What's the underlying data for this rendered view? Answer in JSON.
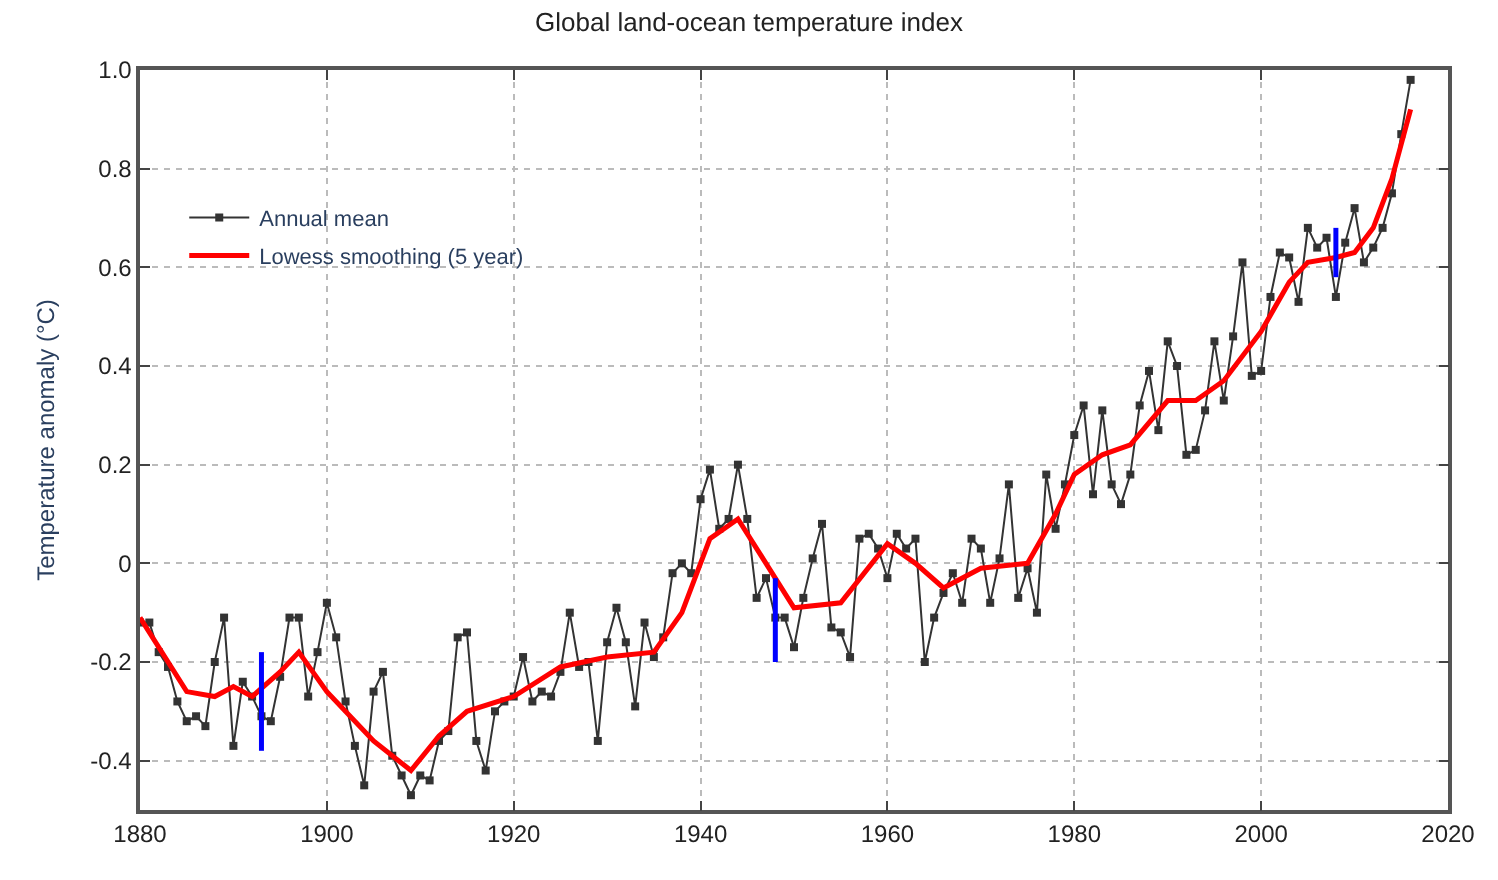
{
  "chart_data": {
    "type": "line",
    "title": "Global land-ocean temperature index",
    "ylabel": "Temperature anomaly (°C)",
    "xlim": [
      1880,
      2020
    ],
    "xticks": [
      1880,
      1900,
      1920,
      1940,
      1960,
      1980,
      2000,
      2020
    ],
    "ylim": [
      -0.5,
      1.0
    ],
    "yticks": [
      -0.4,
      -0.2,
      0,
      0.2,
      0.4,
      0.6,
      0.8,
      {
        "value": 1.0,
        "label": "1.0"
      }
    ],
    "grid": true,
    "legend": "top left",
    "series": [
      {
        "name": "Annual mean",
        "color": "#333333",
        "marker": "square",
        "x": [
          1880,
          1881,
          1882,
          1883,
          1884,
          1885,
          1886,
          1887,
          1888,
          1889,
          1890,
          1891,
          1892,
          1893,
          1894,
          1895,
          1896,
          1897,
          1898,
          1899,
          1900,
          1901,
          1902,
          1903,
          1904,
          1905,
          1906,
          1907,
          1908,
          1909,
          1910,
          1911,
          1912,
          1913,
          1914,
          1915,
          1916,
          1917,
          1918,
          1919,
          1920,
          1921,
          1922,
          1923,
          1924,
          1925,
          1926,
          1927,
          1928,
          1929,
          1930,
          1931,
          1932,
          1933,
          1934,
          1935,
          1936,
          1937,
          1938,
          1939,
          1940,
          1941,
          1942,
          1943,
          1944,
          1945,
          1946,
          1947,
          1948,
          1949,
          1950,
          1951,
          1952,
          1953,
          1954,
          1955,
          1956,
          1957,
          1958,
          1959,
          1960,
          1961,
          1962,
          1963,
          1964,
          1965,
          1966,
          1967,
          1968,
          1969,
          1970,
          1971,
          1972,
          1973,
          1974,
          1975,
          1976,
          1977,
          1978,
          1979,
          1980,
          1981,
          1982,
          1983,
          1984,
          1985,
          1986,
          1987,
          1988,
          1989,
          1990,
          1991,
          1992,
          1993,
          1994,
          1995,
          1996,
          1997,
          1998,
          1999,
          2000,
          2001,
          2002,
          2003,
          2004,
          2005,
          2006,
          2007,
          2008,
          2009,
          2010,
          2011,
          2012,
          2013,
          2014,
          2015,
          2016
        ],
        "values": [
          -0.12,
          -0.12,
          -0.18,
          -0.21,
          -0.28,
          -0.32,
          -0.31,
          -0.33,
          -0.2,
          -0.11,
          -0.37,
          -0.24,
          -0.27,
          -0.31,
          -0.32,
          -0.23,
          -0.11,
          -0.11,
          -0.27,
          -0.18,
          -0.08,
          -0.15,
          -0.28,
          -0.37,
          -0.45,
          -0.26,
          -0.22,
          -0.39,
          -0.43,
          -0.47,
          -0.43,
          -0.44,
          -0.36,
          -0.34,
          -0.15,
          -0.14,
          -0.36,
          -0.42,
          -0.3,
          -0.28,
          -0.27,
          -0.19,
          -0.28,
          -0.26,
          -0.27,
          -0.22,
          -0.1,
          -0.21,
          -0.2,
          -0.36,
          -0.16,
          -0.09,
          -0.16,
          -0.29,
          -0.12,
          -0.19,
          -0.15,
          -0.02,
          0.0,
          -0.02,
          0.13,
          0.19,
          0.07,
          0.09,
          0.2,
          0.09,
          -0.07,
          -0.03,
          -0.11,
          -0.11,
          -0.17,
          -0.07,
          0.01,
          0.08,
          -0.13,
          -0.14,
          -0.19,
          0.05,
          0.06,
          0.03,
          -0.03,
          0.06,
          0.03,
          0.05,
          -0.2,
          -0.11,
          -0.06,
          -0.02,
          -0.08,
          0.05,
          0.03,
          -0.08,
          0.01,
          0.16,
          -0.07,
          -0.01,
          -0.1,
          0.18,
          0.07,
          0.16,
          0.26,
          0.32,
          0.14,
          0.31,
          0.16,
          0.12,
          0.18,
          0.32,
          0.39,
          0.27,
          0.45,
          0.4,
          0.22,
          0.23,
          0.31,
          0.45,
          0.33,
          0.46,
          0.61,
          0.38,
          0.39,
          0.54,
          0.63,
          0.62,
          0.53,
          0.68,
          0.64,
          0.66,
          0.54,
          0.65,
          0.72,
          0.61,
          0.64,
          0.68,
          0.75,
          0.87,
          0.98
        ]
      },
      {
        "name": "Lowess smoothing (5 year)",
        "color": "#ff0000",
        "marker": "none",
        "x": [
          1880,
          1885,
          1888,
          1890,
          1892,
          1895,
          1897,
          1900,
          1905,
          1909,
          1912,
          1915,
          1920,
          1925,
          1930,
          1935,
          1938,
          1941,
          1944,
          1947,
          1950,
          1955,
          1960,
          1963,
          1966,
          1970,
          1975,
          1978,
          1980,
          1983,
          1986,
          1990,
          1993,
          1996,
          2000,
          2003,
          2005,
          2008,
          2010,
          2012,
          2014,
          2016
        ],
        "values": [
          -0.11,
          -0.26,
          -0.27,
          -0.25,
          -0.27,
          -0.22,
          -0.18,
          -0.26,
          -0.36,
          -0.42,
          -0.35,
          -0.3,
          -0.27,
          -0.21,
          -0.19,
          -0.18,
          -0.1,
          0.05,
          0.09,
          0.0,
          -0.09,
          -0.08,
          0.04,
          0.0,
          -0.05,
          -0.01,
          0.0,
          0.1,
          0.18,
          0.22,
          0.24,
          0.33,
          0.33,
          0.37,
          0.47,
          0.57,
          0.61,
          0.62,
          0.63,
          0.68,
          0.78,
          0.92
        ]
      },
      {
        "color": "#0000ff",
        "marker": "none",
        "x": [
          1893,
          1893
        ],
        "values": [
          -0.38,
          -0.18
        ]
      },
      {
        "color": "#0000ff",
        "marker": "none",
        "x": [
          1948,
          1948
        ],
        "values": [
          -0.2,
          -0.03
        ]
      },
      {
        "color": "#0000ff",
        "marker": "none",
        "x": [
          2008,
          2008
        ],
        "values": [
          0.58,
          0.68
        ]
      }
    ]
  }
}
